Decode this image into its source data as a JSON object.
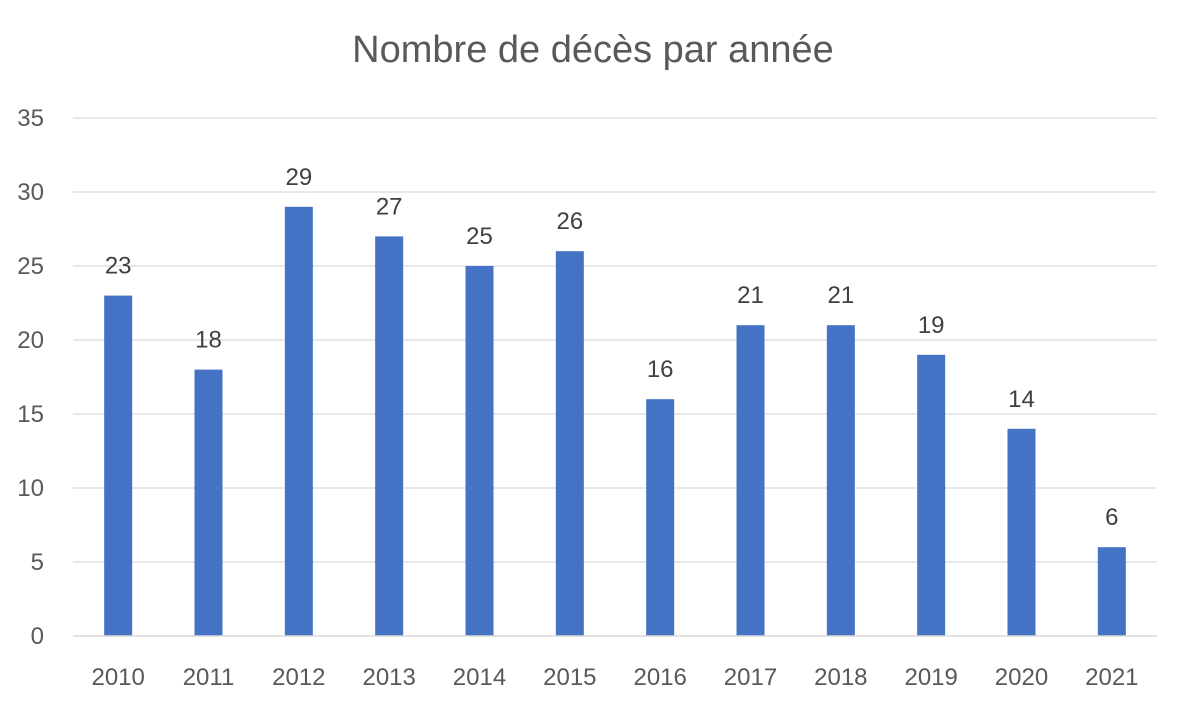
{
  "chart_data": {
    "type": "bar",
    "title": "Nombre de décès par année",
    "xlabel": "",
    "ylabel": "",
    "categories": [
      "2010",
      "2011",
      "2012",
      "2013",
      "2014",
      "2015",
      "2016",
      "2017",
      "2018",
      "2019",
      "2020",
      "2021"
    ],
    "values": [
      23,
      18,
      29,
      27,
      25,
      26,
      16,
      21,
      21,
      19,
      14,
      6
    ],
    "ylim": [
      0,
      35
    ],
    "yticks": [
      0,
      5,
      10,
      15,
      20,
      25,
      30,
      35
    ],
    "grid": true,
    "legend": "none",
    "data_labels": true,
    "bar_color": "#4472c4"
  }
}
